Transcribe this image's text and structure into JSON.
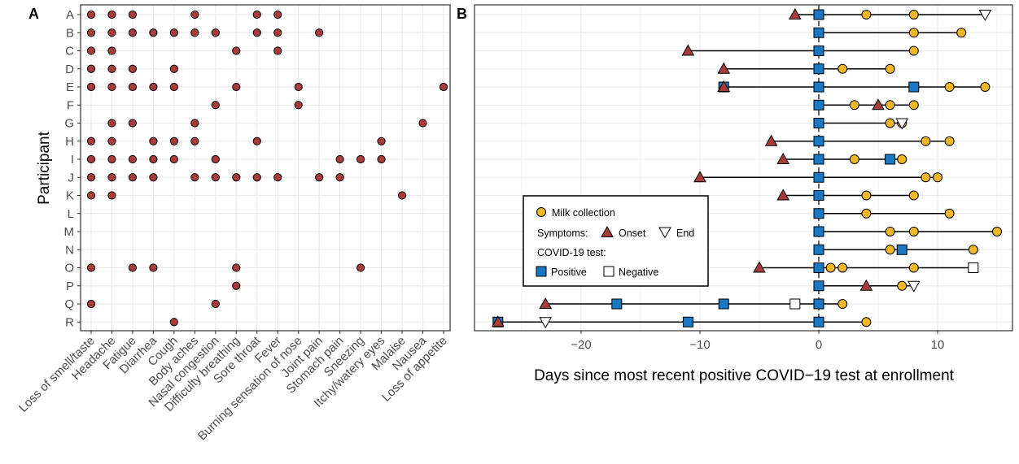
{
  "chart_data": [
    {
      "panel": "A",
      "type": "scatter",
      "ylabel": "Participant",
      "xlabel": "",
      "participants": [
        "A",
        "B",
        "C",
        "D",
        "E",
        "F",
        "G",
        "H",
        "I",
        "J",
        "K",
        "L",
        "M",
        "N",
        "O",
        "P",
        "Q",
        "R"
      ],
      "symptoms": [
        "Loss of smell/taste",
        "Headache",
        "Fatigue",
        "Diarrhea",
        "Cough",
        "Body aches",
        "Nasal congestion",
        "Difficulty breathing",
        "Sore throat",
        "Fever",
        "Burning sensation of nose",
        "Joint pain",
        "Stomach pain",
        "Sneezing",
        "Itchy/watery eyes",
        "Malaise",
        "Nausea",
        "Loss of appetite"
      ],
      "presence": {
        "A": [
          "Loss of smell/taste",
          "Headache",
          "Fatigue",
          "Body aches",
          "Sore throat",
          "Fever"
        ],
        "B": [
          "Loss of smell/taste",
          "Headache",
          "Fatigue",
          "Diarrhea",
          "Cough",
          "Body aches",
          "Nasal congestion",
          "Sore throat",
          "Fever",
          "Joint pain"
        ],
        "C": [
          "Loss of smell/taste",
          "Headache",
          "Difficulty breathing",
          "Fever"
        ],
        "D": [
          "Loss of smell/taste",
          "Headache",
          "Fatigue",
          "Cough"
        ],
        "E": [
          "Loss of smell/taste",
          "Headache",
          "Fatigue",
          "Diarrhea",
          "Cough",
          "Difficulty breathing",
          "Burning sensation of nose",
          "Loss of appetite"
        ],
        "F": [
          "Nasal congestion",
          "Burning sensation of nose"
        ],
        "G": [
          "Headache",
          "Fatigue",
          "Body aches",
          "Nausea"
        ],
        "H": [
          "Loss of smell/taste",
          "Headache",
          "Diarrhea",
          "Cough",
          "Body aches",
          "Sore throat",
          "Itchy/watery eyes"
        ],
        "I": [
          "Loss of smell/taste",
          "Headache",
          "Fatigue",
          "Diarrhea",
          "Cough",
          "Nasal congestion",
          "Stomach pain",
          "Sneezing",
          "Itchy/watery eyes"
        ],
        "J": [
          "Loss of smell/taste",
          "Headache",
          "Fatigue",
          "Diarrhea",
          "Body aches",
          "Nasal congestion",
          "Difficulty breathing",
          "Sore throat",
          "Fever",
          "Joint pain",
          "Stomach pain"
        ],
        "K": [
          "Loss of smell/taste",
          "Headache",
          "Malaise"
        ],
        "L": [],
        "M": [],
        "N": [],
        "O": [
          "Loss of smell/taste",
          "Fatigue",
          "Diarrhea",
          "Difficulty breathing",
          "Sneezing"
        ],
        "P": [
          "Difficulty breathing"
        ],
        "Q": [
          "Loss of smell/taste",
          "Nasal congestion"
        ],
        "R": [
          "Cough"
        ]
      },
      "marker_color": "#a83c3c",
      "grid": true
    },
    {
      "panel": "B",
      "type": "scatter",
      "xlabel": "Days since most recent positive COVID−19 test at enrollment",
      "xlim": [
        -28,
        16
      ],
      "xticks": [
        -20,
        -10,
        0,
        10
      ],
      "tick_labels": [
        "−20",
        "−10",
        "0",
        "10"
      ],
      "reference_line_x": 0,
      "grid": true,
      "colors": {
        "milk": "#f0b828",
        "onset": "#a83c3c",
        "end": "#ffffff",
        "positive": "#1a78c2",
        "negative": "#ffffff"
      },
      "legend": {
        "placement": "bottom-left",
        "milk": "Milk collection",
        "symptoms_title": "Symptoms:",
        "onset": "Onset",
        "end": "End",
        "test_title": "COVID-19 test:",
        "positive": "Positive",
        "negative": "Negative"
      },
      "participants": [
        "A",
        "B",
        "C",
        "D",
        "E",
        "F",
        "G",
        "H",
        "I",
        "J",
        "K",
        "L",
        "M",
        "N",
        "O",
        "P",
        "Q",
        "R"
      ],
      "rows": [
        {
          "id": "A",
          "onset": -2,
          "end": 14,
          "positive": [
            0
          ],
          "negative": [],
          "milk": [
            4,
            8
          ]
        },
        {
          "id": "B",
          "onset": null,
          "end": null,
          "positive": [
            0
          ],
          "negative": [],
          "milk": [
            8,
            12
          ]
        },
        {
          "id": "C",
          "onset": -11,
          "end": null,
          "positive": [
            0
          ],
          "negative": [],
          "milk": [
            8
          ]
        },
        {
          "id": "D",
          "onset": -8,
          "end": null,
          "positive": [
            0
          ],
          "negative": [],
          "milk": [
            2,
            6
          ]
        },
        {
          "id": "E",
          "onset": -8,
          "end": null,
          "positive": [
            -8,
            0,
            8
          ],
          "negative": [],
          "milk": [
            8,
            11,
            14
          ]
        },
        {
          "id": "F",
          "onset": 5,
          "end": null,
          "positive": [
            0
          ],
          "negative": [],
          "milk": [
            3,
            6,
            8
          ]
        },
        {
          "id": "G",
          "onset": null,
          "end": 7,
          "positive": [
            0
          ],
          "negative": [],
          "milk": [
            6,
            7
          ]
        },
        {
          "id": "H",
          "onset": -4,
          "end": null,
          "positive": [
            0
          ],
          "negative": [],
          "milk": [
            9,
            11
          ]
        },
        {
          "id": "I",
          "onset": -3,
          "end": null,
          "positive": [
            0,
            6
          ],
          "negative": [],
          "milk": [
            3,
            7
          ]
        },
        {
          "id": "J",
          "onset": -10,
          "end": null,
          "positive": [
            0
          ],
          "negative": [],
          "milk": [
            9,
            10
          ]
        },
        {
          "id": "K",
          "onset": -3,
          "end": null,
          "positive": [
            0
          ],
          "negative": [],
          "milk": [
            4,
            8
          ]
        },
        {
          "id": "L",
          "onset": null,
          "end": null,
          "positive": [
            0
          ],
          "negative": [],
          "milk": [
            4,
            11
          ]
        },
        {
          "id": "M",
          "onset": null,
          "end": null,
          "positive": [
            0
          ],
          "negative": [],
          "milk": [
            6,
            8,
            15
          ]
        },
        {
          "id": "N",
          "onset": null,
          "end": null,
          "positive": [
            0,
            7
          ],
          "negative": [],
          "milk": [
            6,
            7,
            13
          ]
        },
        {
          "id": "O",
          "onset": -5,
          "end": null,
          "positive": [
            0
          ],
          "negative": [
            13
          ],
          "milk": [
            1,
            2,
            8
          ]
        },
        {
          "id": "P",
          "onset": 4,
          "end": 8,
          "positive": [
            0
          ],
          "negative": [],
          "milk": [
            7
          ]
        },
        {
          "id": "Q",
          "onset": -23,
          "end": null,
          "positive": [
            -17,
            -8,
            0
          ],
          "negative": [
            -2
          ],
          "milk": [
            2
          ]
        },
        {
          "id": "R",
          "onset": -27,
          "end": -23,
          "positive": [
            -27,
            -11,
            0
          ],
          "negative": [],
          "milk": [
            4
          ]
        }
      ]
    }
  ]
}
